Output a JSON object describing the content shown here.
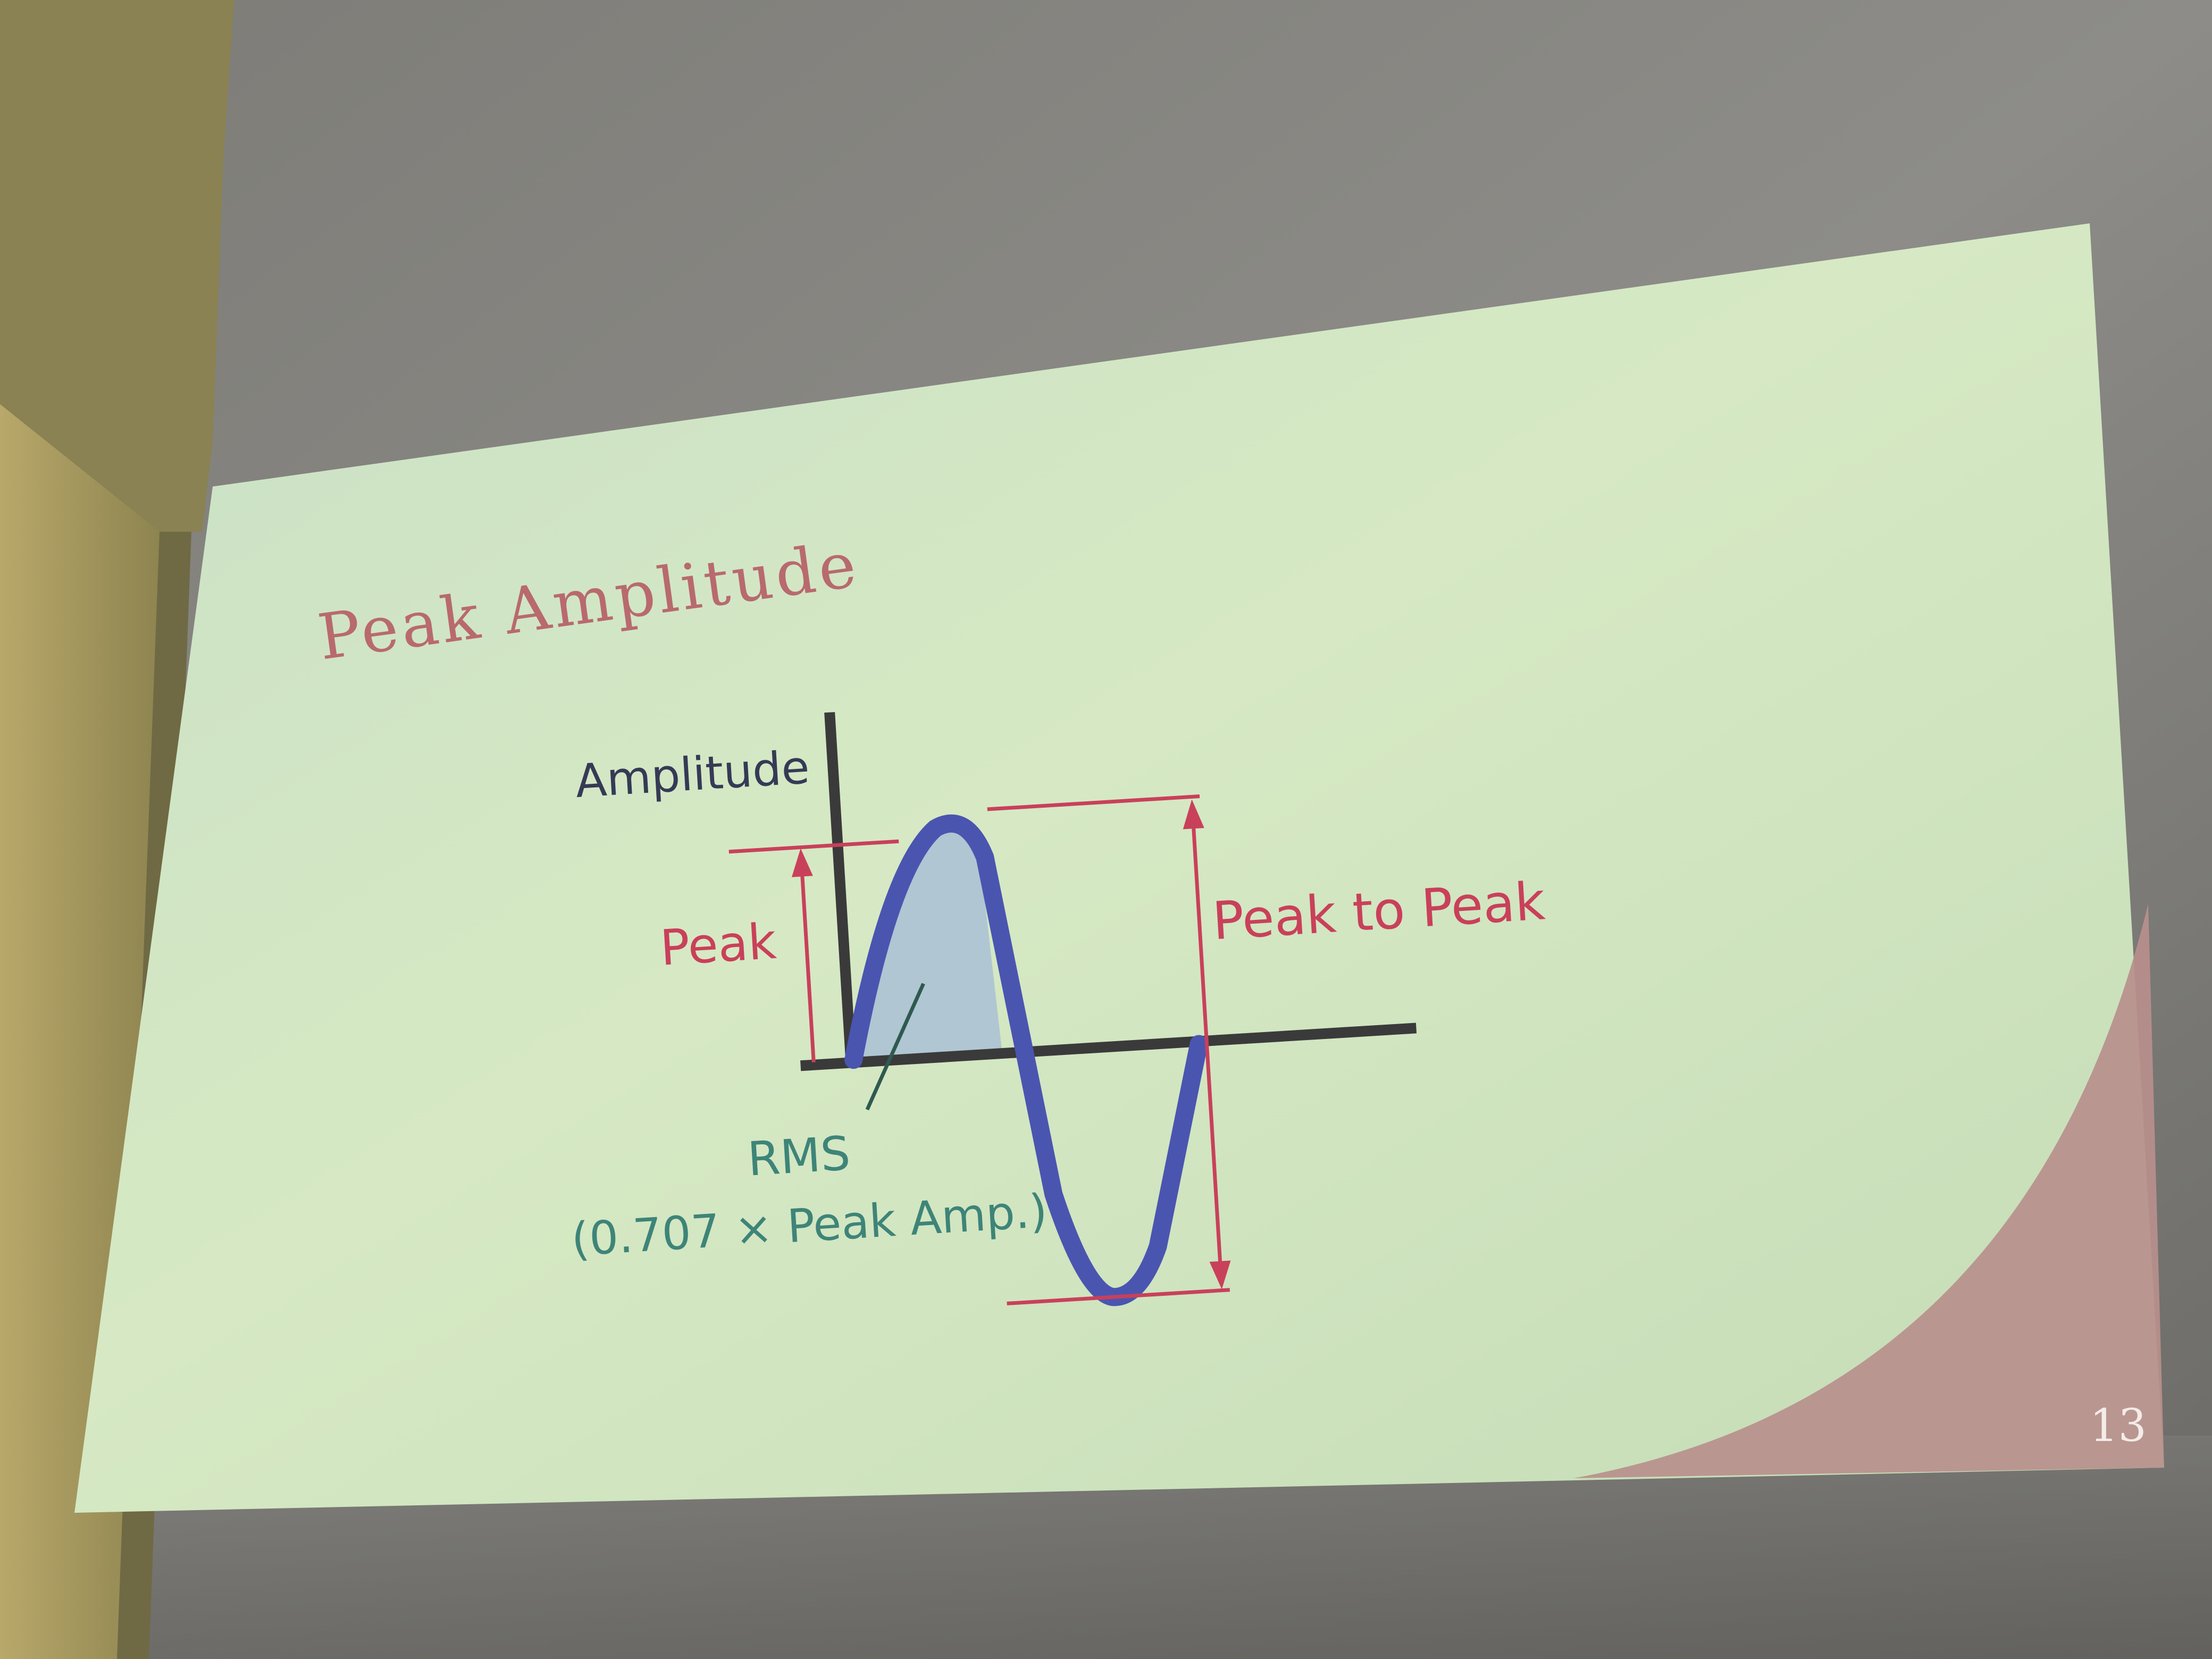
{
  "slide": {
    "title": "Peak Amplitude",
    "page_number": "13",
    "colors": {
      "title": "#b86a6e",
      "axis": "#3a3a3a",
      "wave": "#4a55b0",
      "wave_fill": "#a9c0d6",
      "annotation_red": "#c9405a",
      "rms_label": "#3e8478",
      "slide_bg": "#cfe3c2",
      "corner_accent": "#b98f8c"
    }
  },
  "diagram": {
    "axis_label": "Amplitude",
    "peak_label": "Peak",
    "peak_to_peak_label": "Peak to Peak",
    "rms_label": "RMS",
    "rms_formula": "(0.707 × Peak Amp.)"
  }
}
